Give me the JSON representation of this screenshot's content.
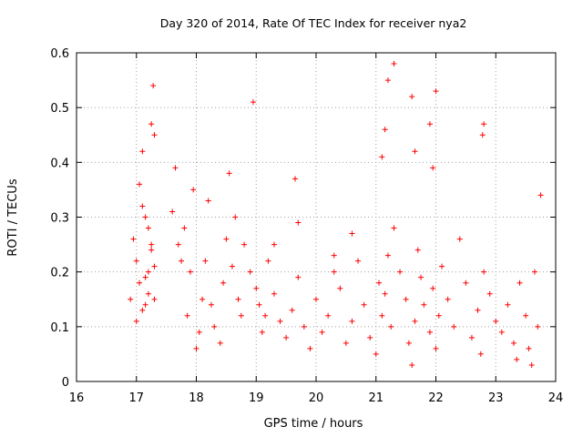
{
  "chart_data": {
    "type": "scatter",
    "title": "Day 320 of 2014, Rate Of TEC Index for receiver nya2",
    "xlabel": "GPS time / hours",
    "ylabel": "ROTI / TECUs",
    "xlim": [
      16,
      24
    ],
    "ylim": [
      0,
      0.6
    ],
    "xticks": [
      16,
      17,
      18,
      19,
      20,
      21,
      22,
      23,
      24
    ],
    "yticks": [
      0,
      0.1,
      0.2,
      0.3,
      0.4,
      0.5,
      0.6
    ],
    "grid": true,
    "marker": "+",
    "series": [
      {
        "name": "nya2",
        "color": "#ff0000",
        "x": [
          16.9,
          16.95,
          17.0,
          17.05,
          17.1,
          17.15,
          17.2,
          17.25,
          17.3,
          17.05,
          17.1,
          17.2,
          17.25,
          17.15,
          17.3,
          17.0,
          17.1,
          17.2,
          17.15,
          17.25,
          17.28,
          17.3,
          17.6,
          17.65,
          17.7,
          17.75,
          17.8,
          17.85,
          17.9,
          17.95,
          18.0,
          18.05,
          18.1,
          18.15,
          18.2,
          18.25,
          18.3,
          18.4,
          18.45,
          18.5,
          18.55,
          18.6,
          18.65,
          18.7,
          18.75,
          18.8,
          18.9,
          18.95,
          19.0,
          19.05,
          19.1,
          19.15,
          19.2,
          19.3,
          19.4,
          19.5,
          19.6,
          19.65,
          19.7,
          19.8,
          19.9,
          20.0,
          20.1,
          20.2,
          20.3,
          20.4,
          20.5,
          20.6,
          20.7,
          20.8,
          20.9,
          21.0,
          21.05,
          21.1,
          21.15,
          21.2,
          21.25,
          21.3,
          21.4,
          21.5,
          21.55,
          21.6,
          21.65,
          21.7,
          21.75,
          21.8,
          21.9,
          21.95,
          22.0,
          22.05,
          22.1,
          22.2,
          22.3,
          22.4,
          22.5,
          22.6,
          22.7,
          22.75,
          22.8,
          22.9,
          23.0,
          23.1,
          23.2,
          23.3,
          23.35,
          23.4,
          23.5,
          23.55,
          23.6,
          23.65,
          23.7,
          23.75,
          19.3,
          19.7,
          20.3,
          20.6,
          21.1,
          21.2,
          21.3,
          21.15,
          21.6,
          21.65,
          21.9,
          22.0,
          21.95,
          22.8,
          22.78
        ],
        "y": [
          0.15,
          0.26,
          0.22,
          0.18,
          0.42,
          0.14,
          0.2,
          0.25,
          0.15,
          0.36,
          0.32,
          0.28,
          0.24,
          0.19,
          0.21,
          0.11,
          0.13,
          0.16,
          0.3,
          0.47,
          0.54,
          0.45,
          0.31,
          0.39,
          0.25,
          0.22,
          0.28,
          0.12,
          0.2,
          0.35,
          0.06,
          0.09,
          0.15,
          0.22,
          0.33,
          0.14,
          0.1,
          0.07,
          0.18,
          0.26,
          0.38,
          0.21,
          0.3,
          0.15,
          0.12,
          0.25,
          0.2,
          0.51,
          0.17,
          0.14,
          0.09,
          0.12,
          0.22,
          0.16,
          0.11,
          0.08,
          0.13,
          0.37,
          0.19,
          0.1,
          0.06,
          0.15,
          0.09,
          0.12,
          0.2,
          0.17,
          0.07,
          0.11,
          0.22,
          0.14,
          0.08,
          0.05,
          0.18,
          0.12,
          0.16,
          0.23,
          0.1,
          0.28,
          0.2,
          0.15,
          0.07,
          0.03,
          0.11,
          0.24,
          0.19,
          0.14,
          0.09,
          0.17,
          0.06,
          0.12,
          0.21,
          0.15,
          0.1,
          0.26,
          0.18,
          0.08,
          0.13,
          0.05,
          0.2,
          0.16,
          0.11,
          0.09,
          0.14,
          0.07,
          0.04,
          0.18,
          0.12,
          0.06,
          0.03,
          0.2,
          0.1,
          0.34,
          0.25,
          0.29,
          0.23,
          0.27,
          0.41,
          0.55,
          0.58,
          0.46,
          0.52,
          0.42,
          0.47,
          0.53,
          0.39,
          0.47,
          0.45
        ]
      }
    ]
  }
}
